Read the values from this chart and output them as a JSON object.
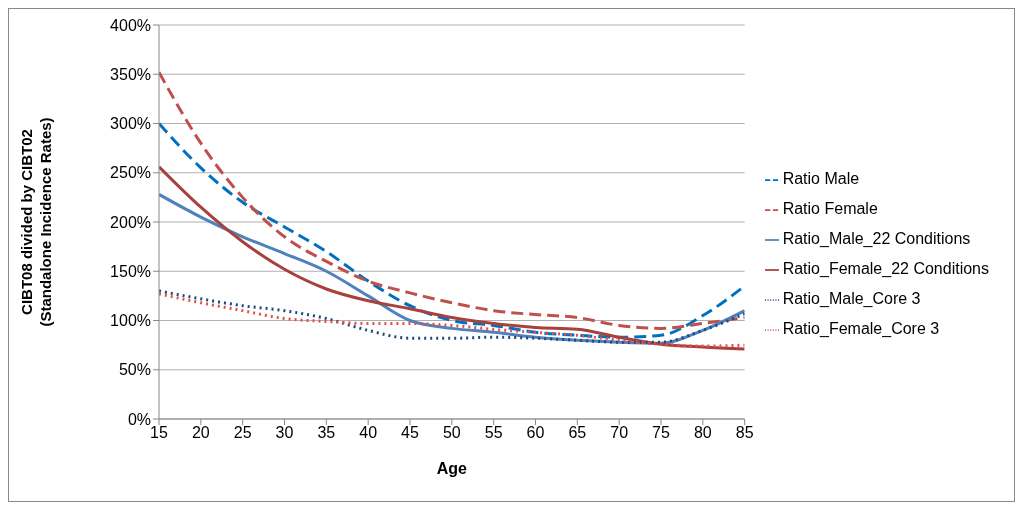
{
  "chart_data": {
    "type": "line",
    "xlabel": "Age",
    "ylabel": "CIBT08 divided by CIBT02\n(Standalone Incidence Rates)",
    "x": [
      15,
      20,
      25,
      30,
      35,
      40,
      45,
      50,
      55,
      60,
      65,
      70,
      75,
      80,
      85
    ],
    "xlim": [
      15,
      85
    ],
    "xticks": [
      15,
      20,
      25,
      30,
      35,
      40,
      45,
      50,
      55,
      60,
      65,
      70,
      75,
      80,
      85
    ],
    "ylim": [
      0,
      400
    ],
    "yticks": [
      {
        "value": 0,
        "label": "0%"
      },
      {
        "value": 50,
        "label": "50%"
      },
      {
        "value": 100,
        "label": "100%"
      },
      {
        "value": 150,
        "label": "150%"
      },
      {
        "value": 200,
        "label": "200%"
      },
      {
        "value": 250,
        "label": "250%"
      },
      {
        "value": 300,
        "label": "300%"
      },
      {
        "value": 350,
        "label": "350%"
      },
      {
        "value": 400,
        "label": "400%"
      }
    ],
    "grid": "y",
    "legend": "right",
    "marker": "none",
    "series": [
      {
        "name": "Ratio Male",
        "color": "#0070c0",
        "line_style": "dashed",
        "values": [
          300,
          255,
          220,
          195,
          170,
          140,
          115,
          100,
          95,
          88,
          85,
          83,
          85,
          105,
          135
        ]
      },
      {
        "name": "Ratio Female",
        "color": "#c0504d",
        "line_style": "dashed",
        "values": [
          352,
          280,
          225,
          185,
          160,
          140,
          128,
          118,
          110,
          106,
          103,
          95,
          92,
          97,
          103
        ]
      },
      {
        "name": "Ratio_Male_22 Conditions",
        "color": "#4f81bd",
        "line_style": "solid",
        "values": [
          228,
          205,
          185,
          168,
          150,
          125,
          100,
          92,
          88,
          83,
          80,
          78,
          77,
          90,
          110
        ]
      },
      {
        "name": "Ratio_Female_22 Conditions",
        "color": "#a8403c",
        "line_style": "solid",
        "values": [
          256,
          215,
          180,
          152,
          132,
          120,
          112,
          103,
          97,
          93,
          91,
          83,
          76,
          73,
          71
        ]
      },
      {
        "name": "Ratio_Male_Core 3",
        "color": "#1f497d",
        "line_style": "dotted",
        "values": [
          130,
          122,
          115,
          110,
          102,
          90,
          82,
          82,
          83,
          82,
          80,
          78,
          78,
          90,
          107
        ]
      },
      {
        "name": "Ratio_Female_Core 3",
        "color": "#e0504d",
        "line_style": "dotted",
        "values": [
          127,
          118,
          110,
          102,
          99,
          97,
          97,
          95,
          91,
          88,
          85,
          80,
          76,
          74,
          75
        ]
      }
    ]
  }
}
